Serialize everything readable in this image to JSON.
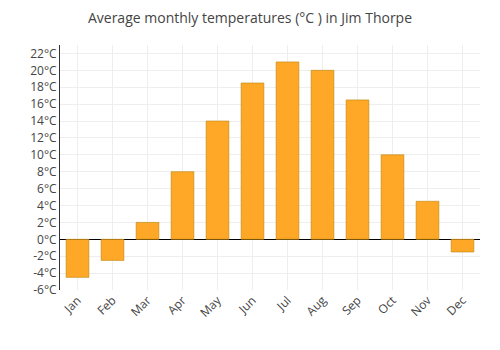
{
  "chart_data": {
    "type": "bar",
    "title": "Average monthly temperatures (°C ) in Jim Thorpe",
    "categories": [
      "Jan",
      "Feb",
      "Mar",
      "Apr",
      "May",
      "Jun",
      "Jul",
      "Aug",
      "Sep",
      "Oct",
      "Nov",
      "Dec"
    ],
    "values": [
      -4.5,
      -2.5,
      2,
      8,
      14,
      18.5,
      21,
      20,
      16.5,
      10,
      4.5,
      -1.5
    ],
    "color": "#FFA726",
    "ylim": [
      -6,
      23
    ],
    "yticks": [
      {
        "value": -6,
        "label": "-6°C"
      },
      {
        "value": -4,
        "label": "-4°C"
      },
      {
        "value": -2,
        "label": "-2°C"
      },
      {
        "value": 0,
        "label": "0°C"
      },
      {
        "value": 2,
        "label": "2°C"
      },
      {
        "value": 4,
        "label": "4°C"
      },
      {
        "value": 6,
        "label": "6°C"
      },
      {
        "value": 8,
        "label": "8°C"
      },
      {
        "value": 10,
        "label": "10°C"
      },
      {
        "value": 12,
        "label": "12°C"
      },
      {
        "value": 14,
        "label": "14°C"
      },
      {
        "value": 16,
        "label": "16°C"
      },
      {
        "value": 18,
        "label": "18°C"
      },
      {
        "value": 20,
        "label": "20°C"
      },
      {
        "value": 22,
        "label": "22°C"
      }
    ],
    "grid": true
  }
}
